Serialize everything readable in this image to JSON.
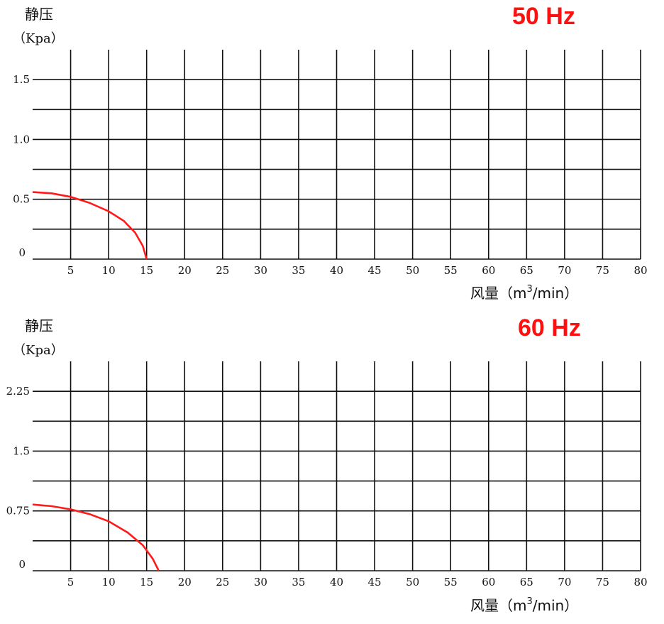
{
  "chart_data": [
    {
      "type": "line",
      "title": "50 Hz",
      "ylabel": "静压",
      "yunit": "（Kpa）",
      "xlabel_main": "风量",
      "xlabel_unit_open": "（m",
      "xlabel_unit_sup": "3",
      "xlabel_unit_close": "/min）",
      "xlim": [
        0,
        80
      ],
      "ylim": [
        0,
        1.75
      ],
      "x_ticks": [
        "5",
        "10",
        "15",
        "20",
        "25",
        "30",
        "35",
        "40",
        "45",
        "50",
        "55",
        "60",
        "65",
        "70",
        "75",
        "80"
      ],
      "y_ticks": [
        {
          "value": 1.5,
          "label": "1.5"
        },
        {
          "value": 1.0,
          "label": "1.0"
        },
        {
          "value": 0.5,
          "label": "0.5"
        },
        {
          "value": 0,
          "label": "0"
        }
      ],
      "grid": true,
      "curve_color": "#ff1a1a",
      "series": [
        {
          "x": [
            0,
            2.5,
            5,
            7.5,
            10,
            12,
            13.5,
            14.5,
            15
          ],
          "y": [
            0.56,
            0.55,
            0.52,
            0.47,
            0.4,
            0.32,
            0.22,
            0.11,
            0.0
          ]
        }
      ]
    },
    {
      "type": "line",
      "title": "60 Hz",
      "ylabel": "静压",
      "yunit": "（Kpa）",
      "xlabel_main": "风量",
      "xlabel_unit_open": "（m",
      "xlabel_unit_sup": "3",
      "xlabel_unit_close": "/min）",
      "xlim": [
        0,
        80
      ],
      "ylim": [
        0,
        2.625
      ],
      "x_ticks": [
        "5",
        "10",
        "15",
        "20",
        "25",
        "30",
        "35",
        "40",
        "45",
        "50",
        "55",
        "60",
        "65",
        "70",
        "75",
        "80"
      ],
      "y_ticks": [
        {
          "value": 2.25,
          "label": "2.25"
        },
        {
          "value": 1.5,
          "label": "1.5"
        },
        {
          "value": 0.75,
          "label": "0.75"
        },
        {
          "value": 0,
          "label": "0"
        }
      ],
      "grid": true,
      "curve_color": "#ff1a1a",
      "series": [
        {
          "x": [
            0,
            2.5,
            5,
            7.5,
            10,
            12.5,
            14.5,
            15.8,
            16.6
          ],
          "y": [
            0.83,
            0.81,
            0.77,
            0.71,
            0.62,
            0.48,
            0.32,
            0.15,
            0.0
          ]
        }
      ]
    }
  ]
}
